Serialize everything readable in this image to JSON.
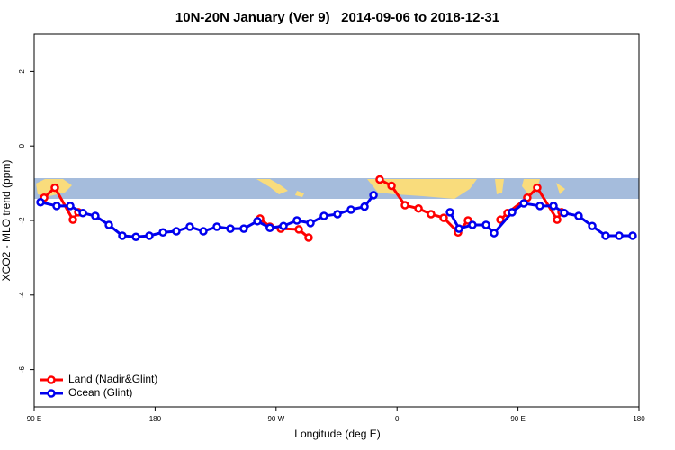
{
  "chart_data": {
    "type": "line",
    "title": "10N-20N January (Ver 9)   2014-09-06 to 2018-12-31",
    "x_label": "Longitude (deg E)",
    "y_label": "XCO2 - MLO trend (ppm)",
    "xlim": [
      90,
      540
    ],
    "xticks": [
      {
        "value": 90,
        "label": "90 E"
      },
      180,
      {
        "value": 270,
        "label": "90 W"
      },
      {
        "value": 360,
        "label": "0"
      },
      {
        "value": 450,
        "label": "90 E"
      },
      {
        "value": 540,
        "label": "180"
      }
    ],
    "ylim": [
      -7,
      3
    ],
    "yticks": [
      -6,
      -4,
      -2,
      0,
      2
    ],
    "legend": "bottom-left",
    "series": [
      {
        "name": "Land (Nadir&Glint)",
        "color": "#ff0000",
        "x": [
          97.4,
          105.4,
          118.8,
          122.8,
          130,
          258.1,
          265.4,
          273.5,
          286.9,
          294.2,
          320,
          347.1,
          355.9,
          365.9,
          376.0,
          385.3,
          394.7,
          405.4,
          412.8,
          425,
          436.9,
          442.2,
          456.9,
          464.3,
          479.1,
          482.4
        ],
        "values": [
          -1.39,
          -1.12,
          -1.98,
          -1.78,
          null,
          -1.95,
          -2.17,
          -2.22,
          -2.24,
          -2.46,
          null,
          -0.9,
          -1.07,
          -1.59,
          -1.68,
          -1.83,
          -1.93,
          -2.32,
          -2.0,
          null,
          -1.98,
          -1.8,
          -1.39,
          -1.12,
          -1.98,
          -1.78
        ]
      },
      {
        "name": "Ocean (Glint)",
        "color": "#0000ee",
        "x": [
          94.7,
          106.7,
          116.8,
          126.2,
          135.5,
          145.6,
          155.6,
          165.7,
          175.7,
          185.8,
          195.8,
          205.8,
          215.9,
          225.9,
          236.0,
          246.0,
          256.1,
          265.4,
          275.5,
          285.5,
          295.6,
          305.6,
          315.7,
          325.7,
          335.8,
          342.5,
          352.5,
          399.4,
          406.1,
          416.1,
          426.2,
          432.2,
          445.6,
          454.3,
          466.3,
          476.4,
          484.4,
          495.1,
          505.2,
          515.2,
          525.3,
          535.3
        ],
        "values": [
          -1.51,
          -1.61,
          -1.61,
          -1.8,
          -1.88,
          -2.12,
          -2.41,
          -2.44,
          -2.41,
          -2.32,
          -2.29,
          -2.17,
          -2.29,
          -2.17,
          -2.22,
          -2.22,
          -2.02,
          -2.2,
          -2.15,
          -2.0,
          -2.07,
          -1.88,
          -1.83,
          -1.71,
          -1.63,
          -1.32,
          null,
          -1.78,
          -2.22,
          -2.12,
          -2.12,
          -2.34,
          -1.78,
          -1.54,
          -1.61,
          -1.61,
          -1.8,
          -1.88,
          -2.15,
          -2.41,
          -2.41,
          -2.41
        ]
      }
    ]
  }
}
